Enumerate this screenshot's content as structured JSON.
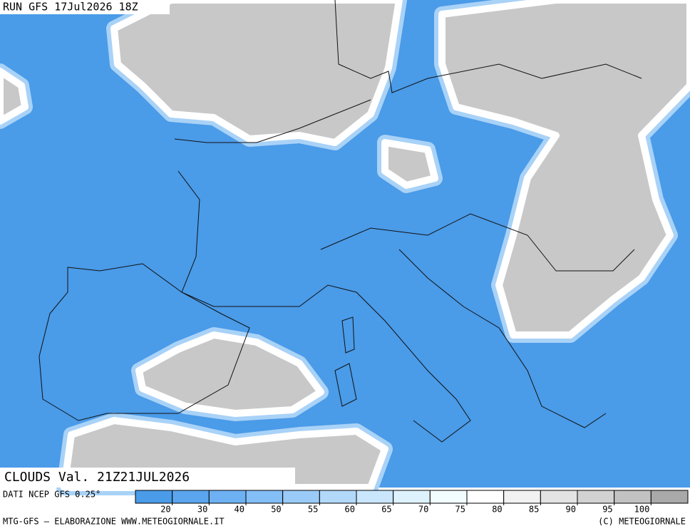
{
  "header": {
    "run": "RUN GFS 17Jul2026 18Z"
  },
  "map": {
    "caption": "CLOUDS Val. 21Z21JUL2026"
  },
  "legend": {
    "title": "DATI NCEP GFS 0.25°",
    "levels": [
      20,
      30,
      40,
      50,
      55,
      60,
      65,
      70,
      75,
      80,
      85,
      90,
      95,
      100
    ],
    "colors": [
      "#4a9be8",
      "#5aa5ee",
      "#6db1f3",
      "#83bef6",
      "#9acbf8",
      "#b2d8fa",
      "#c9e6fc",
      "#def2fe",
      "#f2fdff",
      "#ffffff",
      "#f2f2f2",
      "#e3e3e3",
      "#d2d2d2",
      "#c2c2c2",
      "#a9a9a9"
    ]
  },
  "footer": {
    "credit": "MTG-GFS — ELABORAZIONE WWW.METEOGIORNALE.IT",
    "copyright": "(C) METEOGIORNALE"
  }
}
